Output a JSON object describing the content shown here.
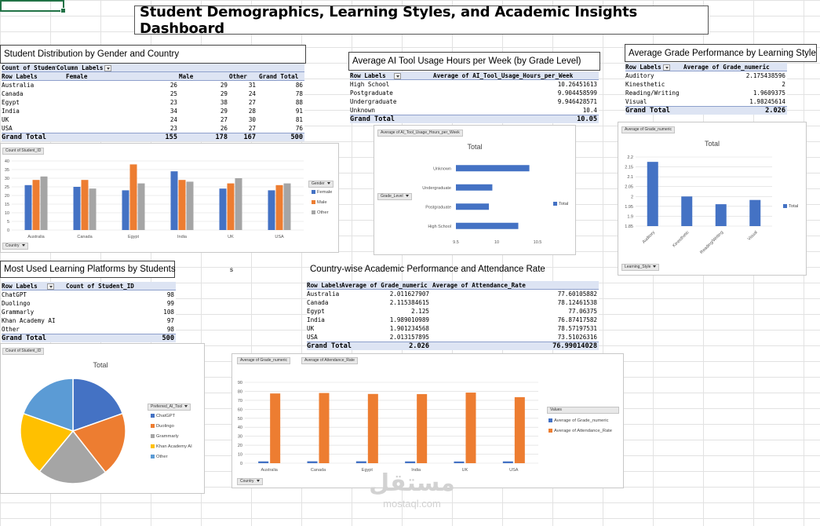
{
  "dashboard_title": "Student Demographics, Learning Styles, and Academic Insights Dashboard",
  "stray_cell": "s",
  "watermark": {
    "arabic": "مستقل",
    "latin": "mostaql.com"
  },
  "colors": {
    "blue": "#4472c4",
    "orange": "#ed7d31",
    "gray": "#a5a5a5",
    "yellow": "#ffc000",
    "lightblue": "#5b9bd5"
  },
  "gender": {
    "section_title": "Student Distribution by Gender and Country",
    "header": [
      "Count of Student",
      "Column Labels"
    ],
    "subheader": [
      "Row Labels",
      "Female",
      "Male",
      "Other",
      "Grand Total"
    ],
    "rows": [
      [
        "Australia",
        "26",
        "29",
        "31",
        "86"
      ],
      [
        "Canada",
        "25",
        "29",
        "24",
        "78"
      ],
      [
        "Egypt",
        "23",
        "38",
        "27",
        "88"
      ],
      [
        "India",
        "34",
        "29",
        "28",
        "91"
      ],
      [
        "UK",
        "24",
        "27",
        "30",
        "81"
      ],
      [
        "USA",
        "23",
        "26",
        "27",
        "76"
      ]
    ],
    "total": [
      "Grand Total",
      "155",
      "178",
      "167",
      "500"
    ],
    "chart_field": "Count of Student_ID",
    "legend_field": "Gender",
    "axis_field": "Country"
  },
  "ai_usage": {
    "section_title": "Average AI Tool Usage Hours per Week (by Grade Level)",
    "header": [
      "Row Labels",
      "Average of AI_Tool_Usage_Hours_per_Week"
    ],
    "rows": [
      [
        "High School",
        "10.26451613"
      ],
      [
        "Postgraduate",
        "9.904458599"
      ],
      [
        "Undergraduate",
        "9.946428571"
      ],
      [
        "Unknown",
        "10.4"
      ]
    ],
    "total": [
      "Grand Total",
      "10.05"
    ],
    "chart_field": "Average of AI_Tool_Usage_Hours_per_Week",
    "chart_title": "Total",
    "axis_field": "Grade_Level",
    "legend": "Total"
  },
  "learning_style": {
    "section_title": "Average Grade Performance by Learning Style",
    "header": [
      "Row Labels",
      "Average of Grade_numeric"
    ],
    "rows": [
      [
        "Auditory",
        "2.175438596"
      ],
      [
        "Kinesthetic",
        "2"
      ],
      [
        "Reading/Writing",
        "1.9609375"
      ],
      [
        "Visual",
        "1.98245614"
      ]
    ],
    "total": [
      "Grand Total",
      "2.026"
    ],
    "chart_field": "Average of Grade_numeric",
    "chart_title": "Total",
    "axis_field": "Learning_Style",
    "legend": "Total"
  },
  "platforms": {
    "section_title": "Most Used Learning Platforms by Students",
    "header": [
      "Row Labels",
      "Count of Student_ID"
    ],
    "rows": [
      [
        "ChatGPT",
        "98"
      ],
      [
        "Duolingo",
        "99"
      ],
      [
        "Grammarly",
        "108"
      ],
      [
        "Khan Academy AI",
        "97"
      ],
      [
        "Other",
        "98"
      ]
    ],
    "total": [
      "Grand Total",
      "500"
    ],
    "chart_field": "Count of Student_ID",
    "chart_title": "Total",
    "legend_field": "Preferred_AI_Tool"
  },
  "country_perf": {
    "section_title": "Country-wise Academic Performance and Attendance Rate",
    "header": [
      "Row Labels",
      "Average of Grade_numeric",
      "Average of Attendance_Rate"
    ],
    "rows": [
      [
        "Australia",
        "2.011627907",
        "77.60105882"
      ],
      [
        "Canada",
        "2.115384615",
        "78.12461538"
      ],
      [
        "Egypt",
        "2.125",
        "77.06375"
      ],
      [
        "India",
        "1.989010989",
        "76.87417582"
      ],
      [
        "UK",
        "1.901234568",
        "78.57197531"
      ],
      [
        "USA",
        "2.013157895",
        "73.51026316"
      ]
    ],
    "total": [
      "Grand Total",
      "2.026",
      "76.99014028"
    ],
    "chart_field_1": "Average of Grade_numeric",
    "chart_field_2": "Average of Attendance_Rate",
    "legend_title": "Values",
    "legend_1": "Average of Grade_numeric",
    "legend_2": "Average of Attendance_Rate",
    "axis_field": "Country"
  },
  "chart_data": [
    {
      "type": "bar",
      "categories": [
        "Australia",
        "Canada",
        "Egypt",
        "India",
        "UK",
        "USA"
      ],
      "series": [
        {
          "name": "Female",
          "values": [
            26,
            25,
            23,
            34,
            24,
            23
          ]
        },
        {
          "name": "Male",
          "values": [
            29,
            29,
            38,
            29,
            27,
            26
          ]
        },
        {
          "name": "Other",
          "values": [
            31,
            24,
            27,
            28,
            30,
            27
          ]
        }
      ],
      "ylim": [
        0,
        40
      ],
      "yticks": [
        "0",
        "5",
        "10",
        "15",
        "20",
        "25",
        "30",
        "35",
        "40"
      ],
      "legend": "right",
      "grid": true
    },
    {
      "type": "bar",
      "orientation": "horizontal",
      "title": "Total",
      "categories": [
        "Unknown",
        "Undergraduate",
        "Postgraduate",
        "High School"
      ],
      "values": [
        10.4,
        9.946428571,
        9.904458599,
        10.26451613
      ],
      "xlim": [
        9.5,
        10.5
      ],
      "xticks": [
        "9.5",
        "10",
        "10.5"
      ],
      "legend": "right",
      "grid": false
    },
    {
      "type": "bar",
      "title": "Total",
      "categories": [
        "Auditory",
        "Kinesthetic",
        "Reading/Writing",
        "Visual"
      ],
      "values": [
        2.175438596,
        2,
        1.9609375,
        1.98245614
      ],
      "ylim": [
        1.85,
        2.2
      ],
      "yticks": [
        "1.85",
        "1.9",
        "1.95",
        "2",
        "2.05",
        "2.1",
        "2.15",
        "2.2"
      ],
      "legend": "right",
      "grid": true
    },
    {
      "type": "pie",
      "title": "Total",
      "categories": [
        "ChatGPT",
        "Duolingo",
        "Grammarly",
        "Khan Academy AI",
        "Other"
      ],
      "values": [
        98,
        99,
        108,
        97,
        98
      ],
      "legend": "right"
    },
    {
      "type": "bar",
      "categories": [
        "Australia",
        "Canada",
        "Egypt",
        "India",
        "UK",
        "USA"
      ],
      "series": [
        {
          "name": "Average of Grade_numeric",
          "values": [
            2.011627907,
            2.115384615,
            2.125,
            1.989010989,
            1.901234568,
            2.013157895
          ]
        },
        {
          "name": "Average of Attendance_Rate",
          "values": [
            77.60105882,
            78.12461538,
            77.06375,
            76.87417582,
            78.57197531,
            73.51026316
          ]
        }
      ],
      "ylim": [
        0,
        90
      ],
      "yticks": [
        "0",
        "10",
        "20",
        "30",
        "40",
        "50",
        "60",
        "70",
        "80",
        "90"
      ],
      "legend": "right",
      "grid": true
    }
  ]
}
